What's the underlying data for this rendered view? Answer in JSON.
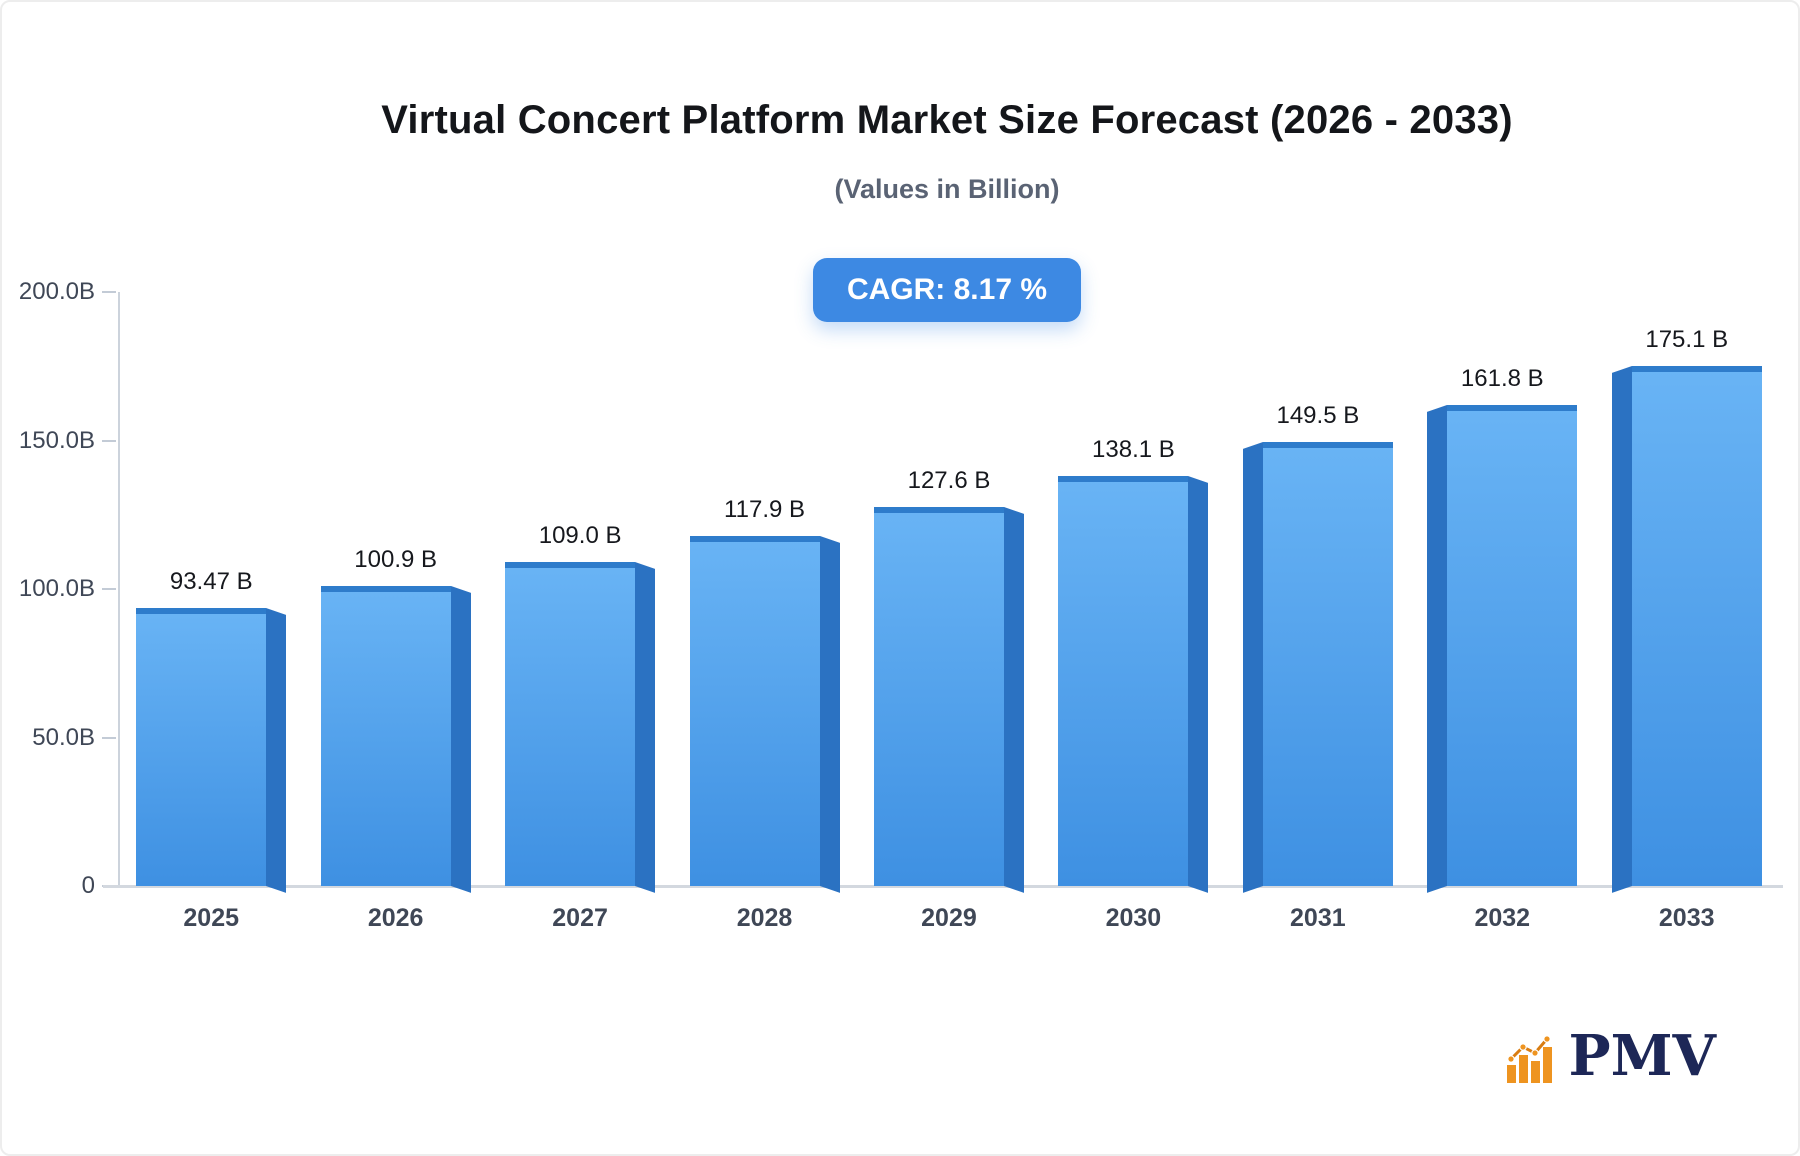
{
  "page": {
    "background": "#ffffff"
  },
  "header": {
    "title": "Virtual Concert Platform Market Size Forecast (2026 - 2033)",
    "subtitle": "(Values in Billion)",
    "cagr_badge": "CAGR: 8.17 %",
    "badge_color": "#3d89e3"
  },
  "chart_data": {
    "type": "bar",
    "title": "Virtual Concert Platform Market Size Forecast (2026 - 2033)",
    "subtitle": "(Values in Billion)",
    "cagr_percent": 8.17,
    "categories": [
      "2025",
      "2026",
      "2027",
      "2028",
      "2029",
      "2030",
      "2031",
      "2032",
      "2033"
    ],
    "values": [
      93.47,
      100.9,
      109.0,
      117.9,
      127.6,
      138.1,
      149.5,
      161.8,
      175.1
    ],
    "value_labels": [
      "93.47 B",
      "100.9 B",
      "109.0 B",
      "117.9 B",
      "127.6 B",
      "138.1 B",
      "149.5 B",
      "161.8 B",
      "175.1 B"
    ],
    "xlabel": "",
    "ylabel": "",
    "ylim": [
      0,
      200
    ],
    "yticks": [
      {
        "value": 0,
        "label": "0"
      },
      {
        "value": 50,
        "label": "50.0B"
      },
      {
        "value": 100,
        "label": "100.0B"
      },
      {
        "value": 150,
        "label": "150.0B"
      },
      {
        "value": 200,
        "label": "200.0B"
      }
    ],
    "grid": false,
    "legend": false,
    "bar_style": {
      "front_top": "#69b4f5",
      "front_bottom": "#3e90e2",
      "side": "#2b72c2",
      "cap": "#2e7ccb"
    }
  },
  "footer": {
    "brand": "PMV",
    "brand_color": "#1d2757",
    "icon": "bar-chart-logo-icon",
    "icon_color": "#ee9420"
  }
}
